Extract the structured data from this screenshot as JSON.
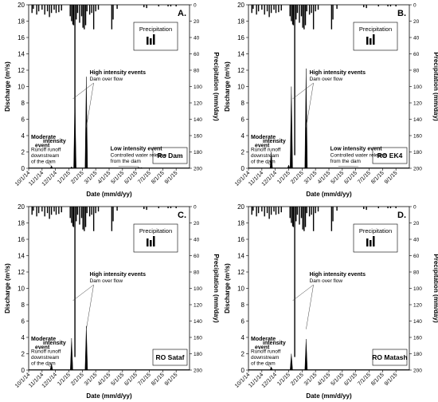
{
  "figure": {
    "left_axis_label": "Discharge (m³/s)",
    "right_axis_label": "Precipitation (mm/day)",
    "x_axis_label": "Date (mm/d/yy)",
    "legend_precip_label": "Precipitation"
  },
  "chart_data": [
    {
      "type": "line",
      "panel_letter": "A.",
      "station": "Ro Dam",
      "x_ticks": [
        "10/1/14",
        "11/1/14",
        "12/1/14",
        "1/1/15",
        "2/1/15",
        "3/1/15",
        "4/1/15",
        "5/1/15",
        "6/1/15",
        "7/1/15",
        "8/1/15",
        "9/1/15"
      ],
      "ylim_discharge": [
        0,
        20
      ],
      "y_ticks_discharge": [
        0,
        2,
        4,
        6,
        8,
        10,
        12,
        14,
        16,
        18,
        20
      ],
      "ylim_precip": [
        0,
        200
      ],
      "y_ticks_precip": [
        0,
        20,
        40,
        60,
        80,
        100,
        120,
        140,
        160,
        180,
        200
      ],
      "discharge_peaks": [
        {
          "month": 1.7,
          "value": 0.3
        },
        {
          "month": 3.2,
          "value": 0.2
        },
        {
          "month": 3.45,
          "value": 8.6
        },
        {
          "month": 4.3,
          "value": 11.2
        },
        {
          "month": 8.2,
          "value": 0.15
        },
        {
          "month": 8.4,
          "value": 0.1
        }
      ],
      "annotations": [
        {
          "bold": "Moderate",
          "bold2": "intensity",
          "bold3": "event",
          "text": [
            "Runoff runoff",
            "downstream",
            "of the dam"
          ]
        },
        {
          "bold": "High intensity events",
          "text": [
            "Dam over flow"
          ]
        },
        {
          "bold": "Low intensity event",
          "text": [
            "Controlled water release",
            "from the dam"
          ]
        }
      ]
    },
    {
      "type": "line",
      "panel_letter": "B.",
      "station": "RO EK4",
      "x_ticks": [
        "10/1/14",
        "11/1/14",
        "12/1/14",
        "1/1/15",
        "2/1/15",
        "3/1/15",
        "4/1/15",
        "5/1/15",
        "6/1/15",
        "7/1/15",
        "8/1/15",
        "9/1/15"
      ],
      "ylim_discharge": [
        0,
        20
      ],
      "y_ticks_discharge": [
        0,
        2,
        4,
        6,
        8,
        10,
        12,
        14,
        16,
        18,
        20
      ],
      "ylim_precip": [
        0,
        200
      ],
      "y_ticks_precip": [
        0,
        20,
        40,
        60,
        80,
        100,
        120,
        140,
        160,
        180,
        200
      ],
      "discharge_peaks": [
        {
          "month": 1.7,
          "value": 2.0
        },
        {
          "month": 3.0,
          "value": 0.4
        },
        {
          "month": 3.2,
          "value": 10.0
        },
        {
          "month": 4.3,
          "value": 12.2
        }
      ],
      "annotations": [
        {
          "bold": "Moderate",
          "bold2": "intensity",
          "bold3": "event",
          "text": [
            "Runoff runoff",
            "downstream",
            "of the dam"
          ]
        },
        {
          "bold": "High intensity events",
          "text": [
            "Dam over flow"
          ]
        },
        {
          "bold": "Low intensity event",
          "text": [
            "Controlled water release",
            "from the dam"
          ]
        }
      ]
    },
    {
      "type": "line",
      "panel_letter": "C.",
      "station": "RO Sataf",
      "x_ticks": [
        "10/1/14",
        "11/1/14",
        "12/1/14",
        "1/1/15",
        "2/1/15",
        "3/1/15",
        "4/1/15",
        "5/1/15",
        "6/1/15",
        "7/1/15",
        "8/1/15",
        "9/1/15"
      ],
      "ylim_discharge": [
        0,
        20
      ],
      "y_ticks_discharge": [
        0,
        2,
        4,
        6,
        8,
        10,
        12,
        14,
        16,
        18,
        20
      ],
      "ylim_precip": [
        0,
        200
      ],
      "y_ticks_precip": [
        0,
        20,
        40,
        60,
        80,
        100,
        120,
        140,
        160,
        180,
        200
      ],
      "discharge_peaks": [
        {
          "month": 1.7,
          "value": 0.8
        },
        {
          "month": 3.2,
          "value": 3.9
        },
        {
          "month": 4.3,
          "value": 5.4
        }
      ],
      "annotations": [
        {
          "bold": "Moderate",
          "bold2": "intensity",
          "bold3": "event",
          "text": [
            "Runoff runoff",
            "downstream",
            "of the dam"
          ]
        },
        {
          "bold": "High intensity events",
          "text": [
            "Dam over flow"
          ]
        }
      ]
    },
    {
      "type": "line",
      "panel_letter": "D.",
      "station": "RO Matash",
      "x_ticks": [
        "10/1/14",
        "11/1/14",
        "12/1/14",
        "1/1/15",
        "2/1/15",
        "3/1/15",
        "4/1/15",
        "5/1/15",
        "6/1/15",
        "7/1/15",
        "8/1/15",
        "9/1/15"
      ],
      "ylim_discharge": [
        0,
        20
      ],
      "y_ticks_discharge": [
        0,
        2,
        4,
        6,
        8,
        10,
        12,
        14,
        16,
        18,
        20
      ],
      "ylim_precip": [
        0,
        200
      ],
      "y_ticks_precip": [
        0,
        20,
        40,
        60,
        80,
        100,
        120,
        140,
        160,
        180,
        200
      ],
      "discharge_peaks": [
        {
          "month": 1.7,
          "value": 0.4
        },
        {
          "month": 3.2,
          "value": 2.0
        },
        {
          "month": 4.3,
          "value": 3.8
        }
      ],
      "annotations": [
        {
          "bold": "Moderate",
          "bold2": "intensity",
          "bold3": "event",
          "text": [
            "Runoff runoff",
            "downstream",
            "of the dam"
          ]
        },
        {
          "bold": "High intensity events",
          "text": [
            "Dam over flow"
          ]
        }
      ]
    }
  ],
  "precipitation": [
    {
      "month": 0.25,
      "value": 10
    },
    {
      "month": 0.35,
      "value": 5
    },
    {
      "month": 0.6,
      "value": 12
    },
    {
      "month": 0.75,
      "value": 8
    },
    {
      "month": 1.0,
      "value": 6
    },
    {
      "month": 1.2,
      "value": 12
    },
    {
      "month": 1.4,
      "value": 8
    },
    {
      "month": 1.55,
      "value": 15
    },
    {
      "month": 1.7,
      "value": 10
    },
    {
      "month": 1.9,
      "value": 6
    },
    {
      "month": 2.05,
      "value": 10
    },
    {
      "month": 2.25,
      "value": 9
    },
    {
      "month": 2.45,
      "value": 7
    },
    {
      "month": 3.1,
      "value": 14
    },
    {
      "month": 3.2,
      "value": 20
    },
    {
      "month": 3.3,
      "value": 24
    },
    {
      "month": 3.35,
      "value": 25
    },
    {
      "month": 3.45,
      "value": 184
    },
    {
      "month": 3.55,
      "value": 18
    },
    {
      "month": 3.65,
      "value": 10
    },
    {
      "month": 3.8,
      "value": 22
    },
    {
      "month": 3.95,
      "value": 14
    },
    {
      "month": 4.05,
      "value": 28
    },
    {
      "month": 4.15,
      "value": 30
    },
    {
      "month": 4.25,
      "value": 25
    },
    {
      "month": 4.35,
      "value": 8
    },
    {
      "month": 4.55,
      "value": 12
    },
    {
      "month": 4.7,
      "value": 10
    },
    {
      "month": 4.85,
      "value": 30
    },
    {
      "month": 5.0,
      "value": 8
    },
    {
      "month": 5.2,
      "value": 6
    },
    {
      "month": 6.2,
      "value": 30
    },
    {
      "month": 6.3,
      "value": 18
    },
    {
      "month": 6.6,
      "value": 5
    },
    {
      "month": 8.6,
      "value": 3
    },
    {
      "month": 8.8,
      "value": 4
    },
    {
      "month": 9.7,
      "value": 2
    },
    {
      "month": 10.4,
      "value": 2
    },
    {
      "month": 10.6,
      "value": 2
    },
    {
      "month": 11.0,
      "value": 2
    }
  ]
}
